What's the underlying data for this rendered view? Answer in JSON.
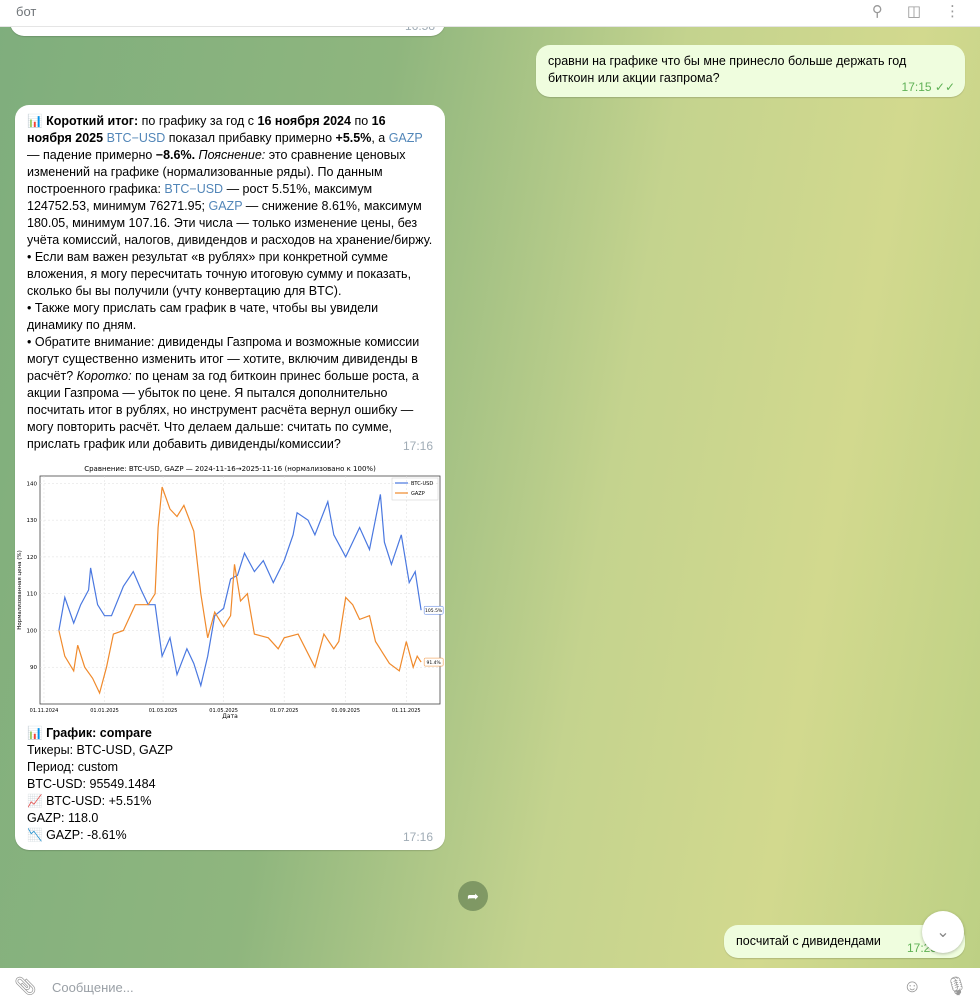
{
  "header": {
    "title": "бот"
  },
  "prev_message": {
    "time": "16:58"
  },
  "messages": [
    {
      "id": "user1",
      "text": "сравни на графике что бы мне принесло больше держать год биткоин или акции газпрома?",
      "time": "17:15"
    },
    {
      "id": "bot1",
      "p1_bold": "Короткий итог:",
      "p1a": " по графику за год с ",
      "p1b_bold": "16 ноября 2024",
      "p1c": " по ",
      "p1d_bold": "16 ноября 2025",
      "p1e": " ",
      "t_btc": "BTC−USD",
      "p1f": " показал прибавку примерно ",
      "p1g_bold": "+5.5%",
      "p1h": ", а ",
      "t_gazp": "GAZP",
      "p1i": " — падение примерно ",
      "p1j_bold": "−8.6%.",
      "p1k": " ",
      "p1l_ital": "Пояснение:",
      "p1m": " это сравнение ценовых изменений на графике (нормализованные ряды). По данным построенного графика: ",
      "t_btc2": "BTC−USD",
      "p1n": " — рост 5.51%, максимум 124752.53, минимум 76271.95; ",
      "t_gazp2": "GAZP",
      "p1o": " — снижение 8.61%, максимум 180.05, минимум 107.16. Эти числа — только изменение цены, без учёта комиссий, налогов, дивидендов и расходов на хранение/биржу. • Если вам важен результат «в рублях» при конкретной сумме вложения, я могу пересчитать точную итоговую сумму и показать, сколько бы вы получили (учту конвертацию для BTC).",
      "p2": "• Также могу прислать сам график в чате, чтобы вы увидели динамику по дням.",
      "p3a": "• Обратите внимание: дивиденды Газпрома и возможные комиссии могут существенно изменить итог — хотите, включим дивиденды в расчёт? ",
      "p3b_ital": "Коротко:",
      "p3c": " по ценам за год биткоин принес больше роста, а акции Газпрома — убыток по цене. Я пытался дополнительно посчитать итог в рублях, но инструмент расчёта вернул ошибку — могу повторить расчёт. Что делаем дальше: считать по сумме, прислать график или добавить дивиденды/комиссии?",
      "time": "17:16"
    },
    {
      "id": "bot2",
      "caption": {
        "title": "График: compare",
        "lines": [
          "Тикеры: BTC-USD, GAZP",
          "Период: custom",
          "BTC-USD: 95549.1484",
          "BTC-USD: +5.51%",
          "GAZP: 118.0",
          "GAZP: -8.61%"
        ]
      },
      "time": "17:16"
    },
    {
      "id": "user2",
      "text": "посчитай с дивидендами",
      "time": "17:25"
    }
  ],
  "input": {
    "placeholder": "Сообщение..."
  },
  "icons": [
    "search-icon",
    "columns-icon",
    "more-icon",
    "chart-emoji-icon",
    "chart-up-emoji-icon",
    "chart-down-emoji-icon",
    "forward-icon",
    "scroll-down-icon",
    "attach-icon",
    "emoji-icon",
    "microphone-icon"
  ],
  "chart_data": {
    "type": "line",
    "title": "Сравнение: BTC-USD, GAZP — 2024-11-16→2025-11-16 (нормализовано к 100%)",
    "xlabel": "Дата",
    "ylabel": "Нормализованная цена (%)",
    "xticks": [
      "01.11.2024",
      "01.01.2025",
      "01.03.2025",
      "01.05.2025",
      "01.07.2025",
      "01.09.2025",
      "01.11.2025"
    ],
    "yticks": [
      90,
      100,
      110,
      120,
      130,
      140
    ],
    "xlim": [
      "2024-10-28",
      "2025-12-05"
    ],
    "ylim": [
      80,
      142
    ],
    "grid": true,
    "legend": "top-right",
    "series": [
      {
        "name": "BTC-USD",
        "color": "#4a78e0",
        "end_label": "105.5%",
        "points": [
          [
            "2024-11-16",
            100
          ],
          [
            "2024-11-22",
            109
          ],
          [
            "2024-12-01",
            102
          ],
          [
            "2024-12-08",
            107
          ],
          [
            "2024-12-16",
            111
          ],
          [
            "2024-12-18",
            117
          ],
          [
            "2024-12-25",
            107
          ],
          [
            "2025-01-01",
            104
          ],
          [
            "2025-01-08",
            104
          ],
          [
            "2025-01-20",
            112
          ],
          [
            "2025-01-30",
            116
          ],
          [
            "2025-02-07",
            111
          ],
          [
            "2025-02-14",
            107
          ],
          [
            "2025-02-21",
            107
          ],
          [
            "2025-02-28",
            93
          ],
          [
            "2025-03-08",
            98
          ],
          [
            "2025-03-15",
            88
          ],
          [
            "2025-03-25",
            95
          ],
          [
            "2025-04-01",
            91
          ],
          [
            "2025-04-08",
            85
          ],
          [
            "2025-04-15",
            93
          ],
          [
            "2025-04-22",
            104
          ],
          [
            "2025-05-01",
            106
          ],
          [
            "2025-05-08",
            114
          ],
          [
            "2025-05-15",
            115
          ],
          [
            "2025-05-22",
            121
          ],
          [
            "2025-06-01",
            116
          ],
          [
            "2025-06-10",
            119
          ],
          [
            "2025-06-20",
            113
          ],
          [
            "2025-07-01",
            119
          ],
          [
            "2025-07-10",
            126
          ],
          [
            "2025-07-14",
            132
          ],
          [
            "2025-07-25",
            130
          ],
          [
            "2025-08-01",
            126
          ],
          [
            "2025-08-14",
            135
          ],
          [
            "2025-08-20",
            126
          ],
          [
            "2025-09-01",
            120
          ],
          [
            "2025-09-15",
            128
          ],
          [
            "2025-09-25",
            122
          ],
          [
            "2025-10-06",
            137
          ],
          [
            "2025-10-10",
            124
          ],
          [
            "2025-10-17",
            118
          ],
          [
            "2025-10-27",
            126
          ],
          [
            "2025-11-04",
            113
          ],
          [
            "2025-11-10",
            116
          ],
          [
            "2025-11-16",
            105.5
          ]
        ]
      },
      {
        "name": "GAZP",
        "color": "#f08a2c",
        "end_label": "91.4%",
        "points": [
          [
            "2024-11-16",
            100
          ],
          [
            "2024-11-22",
            93
          ],
          [
            "2024-12-01",
            89
          ],
          [
            "2024-12-05",
            96
          ],
          [
            "2024-12-12",
            90
          ],
          [
            "2024-12-20",
            87
          ],
          [
            "2024-12-27",
            83
          ],
          [
            "2025-01-03",
            90
          ],
          [
            "2025-01-10",
            99
          ],
          [
            "2025-01-20",
            100
          ],
          [
            "2025-02-01",
            107
          ],
          [
            "2025-02-14",
            107
          ],
          [
            "2025-02-21",
            110
          ],
          [
            "2025-02-24",
            128
          ],
          [
            "2025-02-28",
            139
          ],
          [
            "2025-03-08",
            133
          ],
          [
            "2025-03-15",
            131
          ],
          [
            "2025-03-22",
            134
          ],
          [
            "2025-04-01",
            127
          ],
          [
            "2025-04-08",
            110
          ],
          [
            "2025-04-15",
            98
          ],
          [
            "2025-04-22",
            105
          ],
          [
            "2025-05-01",
            101
          ],
          [
            "2025-05-08",
            104
          ],
          [
            "2025-05-12",
            118
          ],
          [
            "2025-05-18",
            108
          ],
          [
            "2025-05-25",
            110
          ],
          [
            "2025-06-01",
            99
          ],
          [
            "2025-06-15",
            98
          ],
          [
            "2025-06-25",
            95
          ],
          [
            "2025-07-01",
            98
          ],
          [
            "2025-07-15",
            99
          ],
          [
            "2025-08-01",
            90
          ],
          [
            "2025-08-10",
            99
          ],
          [
            "2025-08-20",
            95
          ],
          [
            "2025-08-25",
            97
          ],
          [
            "2025-09-01",
            109
          ],
          [
            "2025-09-08",
            107
          ],
          [
            "2025-09-15",
            103
          ],
          [
            "2025-09-25",
            104
          ],
          [
            "2025-10-01",
            97
          ],
          [
            "2025-10-15",
            91
          ],
          [
            "2025-10-25",
            89
          ],
          [
            "2025-11-01",
            97
          ],
          [
            "2025-11-08",
            90
          ],
          [
            "2025-11-12",
            93
          ],
          [
            "2025-11-16",
            91.4
          ]
        ]
      }
    ]
  }
}
